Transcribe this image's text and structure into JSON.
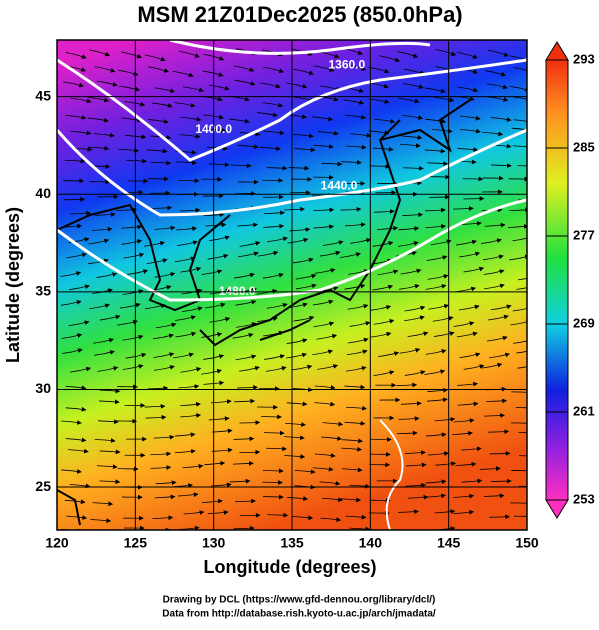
{
  "title": "MSM 21Z01Dec2025 (850.0hPa)",
  "map": {
    "x_label": "Longitude (degrees)",
    "y_label": "Latitude  (degrees)",
    "xlim": [
      120,
      150
    ],
    "ylim": [
      22.8,
      47.9
    ],
    "xticks": [
      120,
      125,
      130,
      135,
      140,
      145,
      150
    ],
    "yticks": [
      25,
      30,
      35,
      40,
      45
    ]
  },
  "colorbar": {
    "range": [
      253,
      293
    ],
    "ticks": [
      293,
      285,
      277,
      269,
      261,
      253
    ]
  },
  "contour_labels": [
    {
      "text": "1360.0",
      "lon": 138.5,
      "lat": 46.6
    },
    {
      "text": "1400.0",
      "lon": 130.0,
      "lat": 43.3
    },
    {
      "text": "1440.0",
      "lon": 138.0,
      "lat": 40.4
    },
    {
      "text": "1480.0",
      "lon": 131.5,
      "lat": 35.0
    }
  ],
  "credits": [
    "Drawing by DCL (https://www.gfd-dennou.org/library/dcl/)",
    "Data from http://database.rish.kyoto-u.ac.jp/arch/jmadata/"
  ]
}
